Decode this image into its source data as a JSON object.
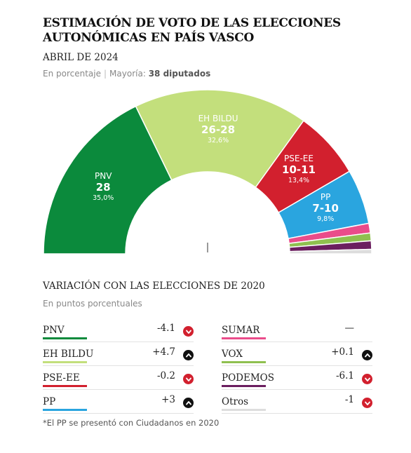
{
  "header": {
    "title": "ESTIMACIÓN DE VOTO DE LAS ELECCIONES AUTONÓMICAS EN PAÍS VASCO",
    "subtitle": "ABRIL DE 2024",
    "unit_text": "En porcentaje",
    "majority_label": "Mayoría:",
    "majority_value": "38 diputados"
  },
  "chart_data": [
    {
      "type": "hemicycle",
      "total_seats": 75,
      "majority": 38,
      "parties": [
        {
          "name": "PNV",
          "seats_label": "28",
          "percent_label": "35,0%",
          "seats": 28,
          "percent": 35.0,
          "color": "#0b8a3c",
          "labeled": true
        },
        {
          "name": "EH BILDU",
          "seats_label": "26-28",
          "percent_label": "32,6%",
          "seats": 27,
          "percent": 32.6,
          "color": "#c3df7c",
          "labeled": true
        },
        {
          "name": "PSE-EE",
          "seats_label": "10-11",
          "percent_label": "13,4%",
          "seats": 10.5,
          "percent": 13.4,
          "color": "#d2202e",
          "labeled": true
        },
        {
          "name": "PP",
          "seats_label": "7-10",
          "percent_label": "9,8%",
          "seats": 8.5,
          "percent": 9.8,
          "color": "#2aa5df",
          "labeled": true
        },
        {
          "name": "SUMAR",
          "seats": 1.5,
          "color": "#ea4c8a",
          "labeled": false
        },
        {
          "name": "VOX",
          "seats": 1.2,
          "color": "#8fc04f",
          "labeled": false
        },
        {
          "name": "PODEMOS",
          "seats": 1.3,
          "color": "#6b1e5f",
          "labeled": false
        },
        {
          "name": "Otros",
          "seats": 0.7,
          "color": "#dddddd",
          "labeled": false
        }
      ]
    },
    {
      "type": "table",
      "title": "VARIACIÓN CON LAS ELECCIONES DE 2020",
      "subtitle": "En puntos porcentuales",
      "rows": [
        {
          "name": "PNV",
          "value_label": "-4.1",
          "value": -4.1,
          "direction": "down",
          "color": "#0b8a3c"
        },
        {
          "name": "EH BILDU",
          "value_label": "+4.7",
          "value": 4.7,
          "direction": "up",
          "color": "#c3df7c"
        },
        {
          "name": "PSE-EE",
          "value_label": "-0.2",
          "value": -0.2,
          "direction": "down",
          "color": "#d2202e"
        },
        {
          "name": "PP",
          "value_label": "+3",
          "value": 3,
          "direction": "up",
          "color": "#2aa5df"
        },
        {
          "name": "SUMAR",
          "value_label": "—",
          "value": null,
          "direction": "none",
          "color": "#ea4c8a"
        },
        {
          "name": "VOX",
          "value_label": "+0.1",
          "value": 0.1,
          "direction": "up",
          "color": "#8fc04f"
        },
        {
          "name": "PODEMOS",
          "value_label": "-6.1",
          "value": -6.1,
          "direction": "down",
          "color": "#6b1e5f"
        },
        {
          "name": "Otros",
          "value_label": "-1",
          "value": -1,
          "direction": "down",
          "color": "#dddddd"
        }
      ]
    }
  ],
  "footnote": "*El PP se presentó con Ciudadanos en 2020"
}
